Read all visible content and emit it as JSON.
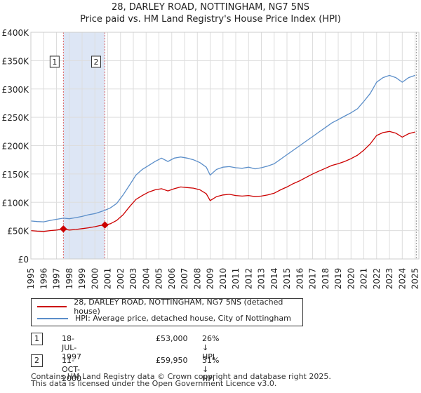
{
  "title_line1": "28, DARLEY ROAD, NOTTINGHAM, NG7 5NS",
  "title_line2": "Price paid vs. HM Land Registry's House Price Index (HPI)",
  "chart_data": {
    "type": "line",
    "title": "28, DARLEY ROAD, NOTTINGHAM, NG7 5NS — Price paid vs. HM Land Registry's House Price Index (HPI)",
    "xlabel": "",
    "ylabel": "",
    "xlim": [
      1995,
      2025.3
    ],
    "ylim": [
      0,
      400000
    ],
    "x_ticks": [
      1995,
      1996,
      1997,
      1998,
      1999,
      2000,
      2001,
      2002,
      2003,
      2004,
      2005,
      2006,
      2007,
      2008,
      2009,
      2010,
      2011,
      2012,
      2013,
      2014,
      2015,
      2016,
      2017,
      2018,
      2019,
      2020,
      2021,
      2022,
      2023,
      2024,
      2025
    ],
    "y_ticks": [
      {
        "value": 0,
        "label": "£0"
      },
      {
        "value": 50000,
        "label": "£50K"
      },
      {
        "value": 100000,
        "label": "£100K"
      },
      {
        "value": 150000,
        "label": "£150K"
      },
      {
        "value": 200000,
        "label": "£200K"
      },
      {
        "value": 250000,
        "label": "£250K"
      },
      {
        "value": 300000,
        "label": "£300K"
      },
      {
        "value": 350000,
        "label": "£350K"
      },
      {
        "value": 400000,
        "label": "£400K"
      }
    ],
    "grid": true,
    "shaded_region": {
      "from": 1997.54,
      "to": 2000.78,
      "color": "#dde6f5"
    },
    "series": [
      {
        "name": "28, DARLEY ROAD, NOTTINGHAM, NG7 5NS (detached house)",
        "color": "#cc0000",
        "points": [
          [
            1995,
            50000
          ],
          [
            1995.5,
            49000
          ],
          [
            1996,
            48500
          ],
          [
            1996.5,
            50000
          ],
          [
            1997,
            51000
          ],
          [
            1997.54,
            53000
          ],
          [
            1998,
            51000
          ],
          [
            1998.5,
            52000
          ],
          [
            1999,
            53500
          ],
          [
            1999.5,
            55000
          ],
          [
            2000,
            57000
          ],
          [
            2000.4,
            59000
          ],
          [
            2000.78,
            59950
          ],
          [
            2001.2,
            62000
          ],
          [
            2001.7,
            68000
          ],
          [
            2002.2,
            78000
          ],
          [
            2002.7,
            92000
          ],
          [
            2003.2,
            105000
          ],
          [
            2003.7,
            112000
          ],
          [
            2004.2,
            118000
          ],
          [
            2004.7,
            122000
          ],
          [
            2005.2,
            124000
          ],
          [
            2005.7,
            120000
          ],
          [
            2006.2,
            124000
          ],
          [
            2006.7,
            127000
          ],
          [
            2007.2,
            126000
          ],
          [
            2007.7,
            125000
          ],
          [
            2008.2,
            122000
          ],
          [
            2008.7,
            115000
          ],
          [
            2009.0,
            103000
          ],
          [
            2009.5,
            110000
          ],
          [
            2010,
            113000
          ],
          [
            2010.5,
            114000
          ],
          [
            2011,
            112000
          ],
          [
            2011.5,
            111000
          ],
          [
            2012,
            112000
          ],
          [
            2012.5,
            110000
          ],
          [
            2013,
            111000
          ],
          [
            2013.5,
            113000
          ],
          [
            2014,
            116000
          ],
          [
            2014.5,
            122000
          ],
          [
            2015,
            127000
          ],
          [
            2015.5,
            133000
          ],
          [
            2016,
            138000
          ],
          [
            2016.5,
            144000
          ],
          [
            2017,
            150000
          ],
          [
            2017.5,
            155000
          ],
          [
            2018,
            160000
          ],
          [
            2018.5,
            165000
          ],
          [
            2019,
            168000
          ],
          [
            2019.5,
            172000
          ],
          [
            2020,
            177000
          ],
          [
            2020.5,
            183000
          ],
          [
            2021,
            192000
          ],
          [
            2021.5,
            203000
          ],
          [
            2022,
            218000
          ],
          [
            2022.5,
            223000
          ],
          [
            2023,
            225000
          ],
          [
            2023.5,
            222000
          ],
          [
            2024,
            215000
          ],
          [
            2024.5,
            221000
          ],
          [
            2025,
            224000
          ]
        ]
      },
      {
        "name": "HPI: Average price, detached house, City of Nottingham",
        "color": "#5b8ec9",
        "points": [
          [
            1995,
            67000
          ],
          [
            1995.5,
            66000
          ],
          [
            1996,
            65500
          ],
          [
            1996.5,
            68000
          ],
          [
            1997,
            70000
          ],
          [
            1997.54,
            72000
          ],
          [
            1998,
            71000
          ],
          [
            1998.5,
            73000
          ],
          [
            1999,
            75000
          ],
          [
            1999.5,
            78000
          ],
          [
            2000,
            80000
          ],
          [
            2000.4,
            83000
          ],
          [
            2000.78,
            86000
          ],
          [
            2001.2,
            90000
          ],
          [
            2001.7,
            98000
          ],
          [
            2002.2,
            113000
          ],
          [
            2002.7,
            130000
          ],
          [
            2003.2,
            148000
          ],
          [
            2003.7,
            158000
          ],
          [
            2004.2,
            165000
          ],
          [
            2004.7,
            172000
          ],
          [
            2005.2,
            178000
          ],
          [
            2005.7,
            172000
          ],
          [
            2006.2,
            178000
          ],
          [
            2006.7,
            180000
          ],
          [
            2007.2,
            178000
          ],
          [
            2007.7,
            175000
          ],
          [
            2008.2,
            170000
          ],
          [
            2008.7,
            162000
          ],
          [
            2009.0,
            148000
          ],
          [
            2009.5,
            158000
          ],
          [
            2010,
            162000
          ],
          [
            2010.5,
            163000
          ],
          [
            2011,
            161000
          ],
          [
            2011.5,
            160000
          ],
          [
            2012,
            162000
          ],
          [
            2012.5,
            159000
          ],
          [
            2013,
            161000
          ],
          [
            2013.5,
            164000
          ],
          [
            2014,
            168000
          ],
          [
            2014.5,
            176000
          ],
          [
            2015,
            184000
          ],
          [
            2015.5,
            192000
          ],
          [
            2016,
            200000
          ],
          [
            2016.5,
            208000
          ],
          [
            2017,
            216000
          ],
          [
            2017.5,
            224000
          ],
          [
            2018,
            232000
          ],
          [
            2018.5,
            240000
          ],
          [
            2019,
            246000
          ],
          [
            2019.5,
            252000
          ],
          [
            2020,
            258000
          ],
          [
            2020.5,
            265000
          ],
          [
            2021,
            278000
          ],
          [
            2021.5,
            292000
          ],
          [
            2022,
            312000
          ],
          [
            2022.5,
            320000
          ],
          [
            2023,
            324000
          ],
          [
            2023.5,
            320000
          ],
          [
            2024,
            312000
          ],
          [
            2024.5,
            320000
          ],
          [
            2025,
            324000
          ]
        ]
      }
    ],
    "markers": [
      {
        "label": "1",
        "x": 1997.54,
        "y": 53000
      },
      {
        "label": "2",
        "x": 2000.78,
        "y": 59950
      }
    ]
  },
  "legend": {
    "red_label": "28, DARLEY ROAD, NOTTINGHAM, NG7 5NS (detached house)",
    "blue_label": "HPI: Average price, detached house, City of Nottingham",
    "red_color": "#cc0000",
    "blue_color": "#5b8ec9"
  },
  "transactions": [
    {
      "num": "1",
      "date": "18-JUL-1997",
      "price": "£53,000",
      "hpi": "26% ↓ HPI"
    },
    {
      "num": "2",
      "date": "11-OCT-2000",
      "price": "£59,950",
      "hpi": "31% ↓ HPI"
    }
  ],
  "footer": {
    "line1": "Contains HM Land Registry data © Crown copyright and database right 2025.",
    "line2": "This data is licensed under the Open Government Licence v3.0."
  }
}
